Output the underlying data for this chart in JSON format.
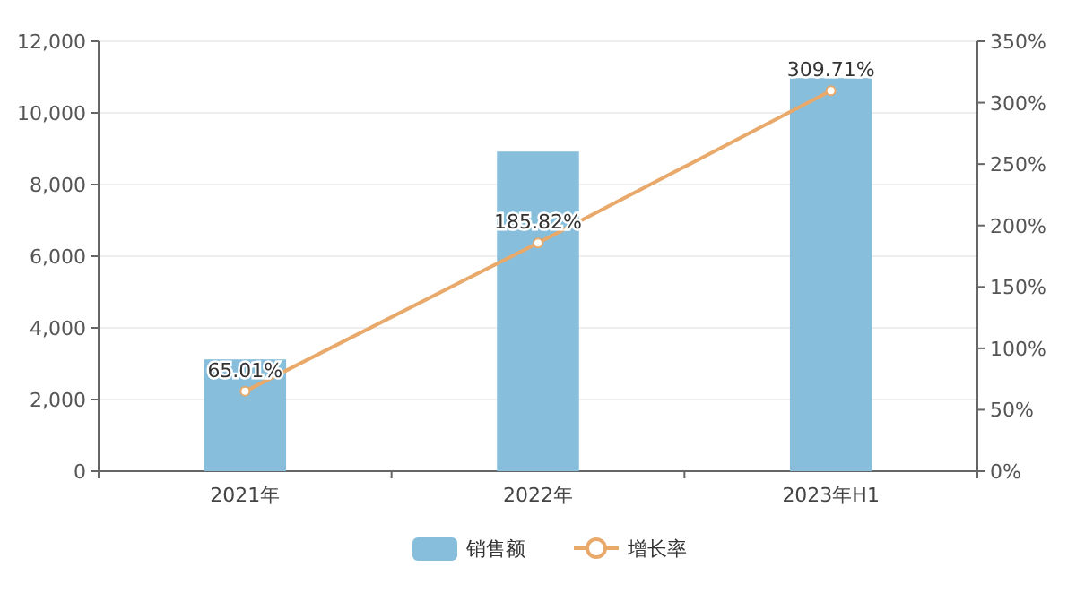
{
  "chart_data": {
    "type": "bar",
    "categories": [
      "2021年",
      "2022年",
      "2023年H1"
    ],
    "series": [
      {
        "name": "销售额",
        "color": "#86bedb",
        "values": [
          3120,
          8920,
          10970
        ]
      },
      {
        "name": "增长率",
        "type": "line",
        "axis": "y2",
        "color": "#e8a96a",
        "marker": "circle",
        "values": [
          65.01,
          185.82,
          309.71
        ],
        "value_labels": [
          "65.01%",
          "185.82%",
          "309.71%"
        ]
      }
    ],
    "ylim": [
      0,
      12000
    ],
    "yticks": [
      0,
      {
        "value": 2000,
        "label": "2,000"
      },
      {
        "value": 4000,
        "label": "4,000"
      },
      {
        "value": 6000,
        "label": "6,000"
      },
      {
        "value": 8000,
        "label": "8,000"
      },
      {
        "value": 10000,
        "label": "10,000"
      },
      {
        "value": 12000,
        "label": "12,000"
      }
    ],
    "y2lim": [
      0,
      350
    ],
    "y2ticks": [
      {
        "value": 0,
        "label": "0%"
      },
      {
        "value": 50,
        "label": "50%"
      },
      {
        "value": 100,
        "label": "100%"
      },
      {
        "value": 150,
        "label": "150%"
      },
      {
        "value": 200,
        "label": "200%"
      },
      {
        "value": 250,
        "label": "250%"
      },
      {
        "value": 300,
        "label": "300%"
      },
      {
        "value": 350,
        "label": "350%"
      }
    ],
    "grid": "y",
    "legend": "bottom"
  }
}
